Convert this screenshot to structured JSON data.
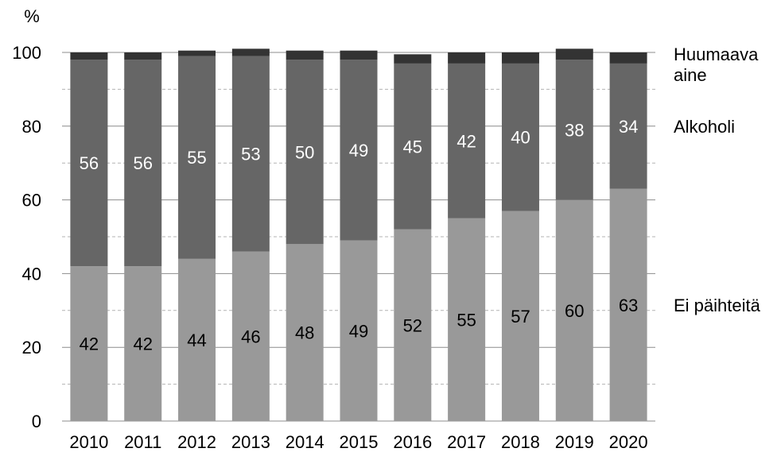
{
  "chart_data": {
    "type": "bar",
    "stacked": true,
    "title": "",
    "xlabel": "",
    "ylabel": "%",
    "ylim": [
      0,
      100
    ],
    "yticks": [
      0,
      20,
      40,
      60,
      80,
      100
    ],
    "grid": "horizontal dashed",
    "legend_placement": "right",
    "categories": [
      "2010",
      "2011",
      "2012",
      "2013",
      "2014",
      "2015",
      "2016",
      "2017",
      "2018",
      "2019",
      "2020"
    ],
    "series": [
      {
        "name": "Ei päihteitä",
        "color": "#999999",
        "label_color": "#000000",
        "values": [
          42,
          42,
          44,
          46,
          48,
          49,
          52,
          55,
          57,
          60,
          63
        ],
        "labels": [
          "42",
          "42",
          "44",
          "46",
          "48",
          "49",
          "52",
          "55",
          "57",
          "60",
          "63"
        ]
      },
      {
        "name": "Alkoholi",
        "color": "#666666",
        "label_color": "#ffffff",
        "values": [
          56,
          56,
          55,
          53,
          50,
          49,
          45,
          42,
          40,
          38,
          34
        ],
        "labels": [
          "56",
          "56",
          "55",
          "53",
          "50",
          "49",
          "45",
          "42",
          "40",
          "38",
          "34"
        ]
      },
      {
        "name": "Huumaava aine",
        "name_lines": [
          "Huumaava",
          "aine"
        ],
        "color": "#333333",
        "values": [
          2,
          2,
          1.5,
          2,
          2.5,
          2.5,
          2.5,
          3,
          3,
          3,
          3
        ]
      }
    ]
  }
}
